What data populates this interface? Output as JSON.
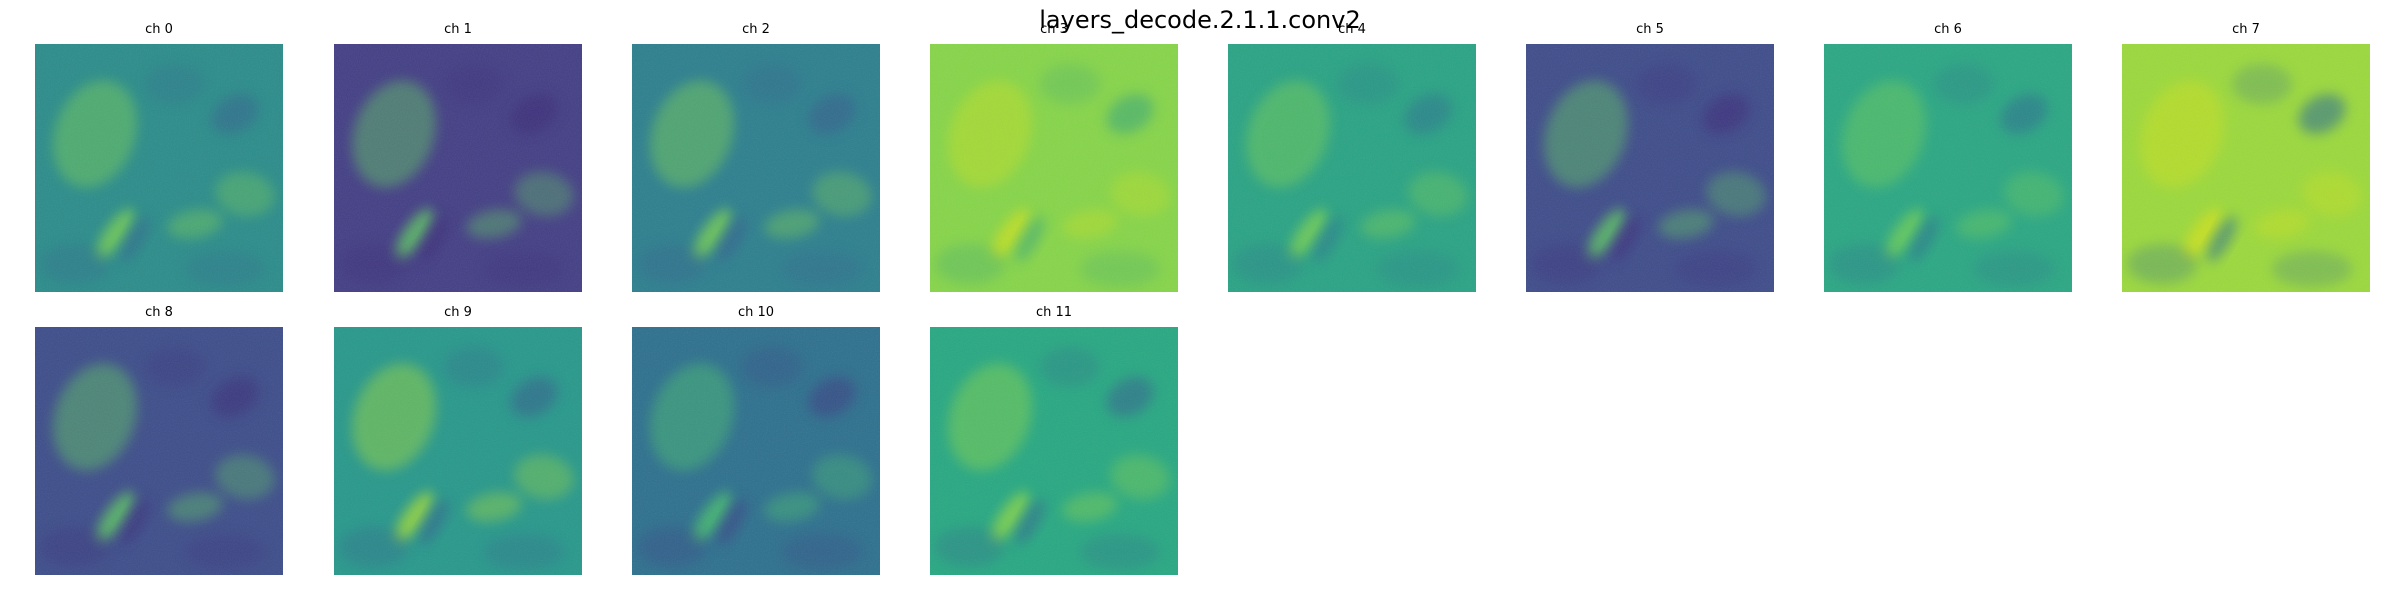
{
  "figure": {
    "title": "layers_decode.2.1.1.conv2"
  },
  "channels": [
    {
      "label": "ch 0",
      "base": "#2a8c8a",
      "light": "#7ad151",
      "dark": "#31688e"
    },
    {
      "label": "ch 1",
      "base": "#433e85",
      "light": "#5ec962",
      "dark": "#3b2a78"
    },
    {
      "label": "ch 2",
      "base": "#2c7f8e",
      "light": "#7ad151",
      "dark": "#355f8d"
    },
    {
      "label": "ch 3",
      "base": "#86d549",
      "light": "#c6e020",
      "dark": "#3aa977"
    },
    {
      "label": "ch 4",
      "base": "#29a384",
      "light": "#7ad151",
      "dark": "#2a788e"
    },
    {
      "label": "ch 5",
      "base": "#3e4c8a",
      "light": "#5ec962",
      "dark": "#3d2c7c"
    },
    {
      "label": "ch 6",
      "base": "#2aa783",
      "light": "#70cf57",
      "dark": "#2c728e"
    },
    {
      "label": "ch 7",
      "base": "#9bd93c",
      "light": "#d0e11c",
      "dark": "#2d718e"
    },
    {
      "label": "ch 8",
      "base": "#3d4d8a",
      "light": "#5ec962",
      "dark": "#3b2f7a"
    },
    {
      "label": "ch 9",
      "base": "#27988b",
      "light": "#a2da37",
      "dark": "#33628d"
    },
    {
      "label": "ch 10",
      "base": "#2d708e",
      "light": "#4ac16d",
      "dark": "#3a3f84"
    },
    {
      "label": "ch 11",
      "base": "#27a882",
      "light": "#8bd646",
      "dark": "#31688e"
    }
  ]
}
